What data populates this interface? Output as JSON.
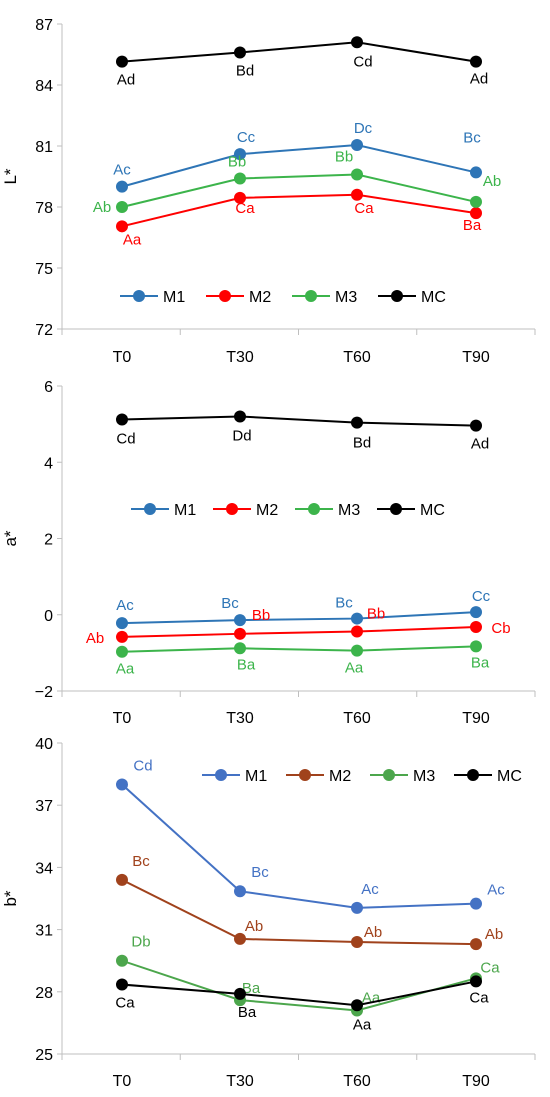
{
  "chart_data": [
    {
      "type": "line",
      "ylabel": "L*",
      "categories": [
        "T0",
        "T30",
        "T60",
        "T90"
      ],
      "ylim": [
        72,
        87
      ],
      "yticks": [
        72,
        75,
        78,
        81,
        84,
        87
      ],
      "legend_position": "bottom-center",
      "series": [
        {
          "name": "M1",
          "color": "#2e75b6",
          "values": [
            79.0,
            80.6,
            81.05,
            79.7
          ],
          "labels": [
            "Ac",
            "Cc",
            "Dc",
            "Bc"
          ]
        },
        {
          "name": "M2",
          "color": "#ff0000",
          "values": [
            77.05,
            78.45,
            78.6,
            77.7
          ],
          "labels": [
            "Aa",
            "Ca",
            "Ca",
            "Ba"
          ]
        },
        {
          "name": "M3",
          "color": "#3cb44b",
          "values": [
            78.0,
            79.4,
            79.6,
            78.25
          ],
          "labels": [
            "Ab",
            "Bb",
            "Bb",
            "Ab"
          ]
        },
        {
          "name": "MC",
          "color": "#000000",
          "values": [
            85.15,
            85.6,
            86.1,
            85.15
          ],
          "labels": [
            "Ad",
            "Bd",
            "Cd",
            "Ad"
          ]
        }
      ]
    },
    {
      "type": "line",
      "ylabel": "a*",
      "categories": [
        "T0",
        "T30",
        "T60",
        "T90"
      ],
      "ylim": [
        -2,
        6
      ],
      "yticks": [
        -2,
        0,
        2,
        4,
        6
      ],
      "legend_position": "center",
      "series": [
        {
          "name": "M1",
          "color": "#2e75b6",
          "values": [
            -0.22,
            -0.14,
            -0.1,
            0.07
          ],
          "labels": [
            "Ac",
            "Bc",
            "Bc",
            "Cc"
          ]
        },
        {
          "name": "M2",
          "color": "#ff0000",
          "values": [
            -0.58,
            -0.5,
            -0.44,
            -0.32
          ],
          "labels": [
            "Ab",
            "Bb",
            "Bb",
            "Cb"
          ]
        },
        {
          "name": "M3",
          "color": "#3cb44b",
          "values": [
            -0.97,
            -0.88,
            -0.94,
            -0.83
          ],
          "labels": [
            "Aa",
            "Ba",
            "Aa",
            "Ba"
          ]
        },
        {
          "name": "MC",
          "color": "#000000",
          "values": [
            5.12,
            5.2,
            5.04,
            4.96
          ],
          "labels": [
            "Cd",
            "Dd",
            "Bd",
            "Ad"
          ]
        }
      ]
    },
    {
      "type": "line",
      "ylabel": "b*",
      "categories": [
        "T0",
        "T30",
        "T60",
        "T90"
      ],
      "ylim": [
        25,
        40
      ],
      "yticks": [
        25,
        28,
        31,
        34,
        37,
        40
      ],
      "legend_position": "top-right",
      "series": [
        {
          "name": "M1",
          "color": "#4472c4",
          "values": [
            38.0,
            32.85,
            32.05,
            32.25
          ],
          "labels": [
            "Cd",
            "Bc",
            "Ac",
            "Ac"
          ]
        },
        {
          "name": "M2",
          "color": "#a0421c",
          "values": [
            33.4,
            30.55,
            30.4,
            30.3
          ],
          "labels": [
            "Bc",
            "Ab",
            "Ab",
            "Ab"
          ]
        },
        {
          "name": "M3",
          "color": "#4ca64c",
          "values": [
            29.5,
            27.6,
            27.1,
            28.65
          ],
          "labels": [
            "Db",
            "Ba",
            "Aa",
            "Ca"
          ]
        },
        {
          "name": "MC",
          "color": "#000000",
          "values": [
            28.35,
            27.9,
            27.35,
            28.5
          ],
          "labels": [
            "Ca",
            "Ba",
            "Aa",
            "Ca"
          ]
        }
      ]
    }
  ]
}
